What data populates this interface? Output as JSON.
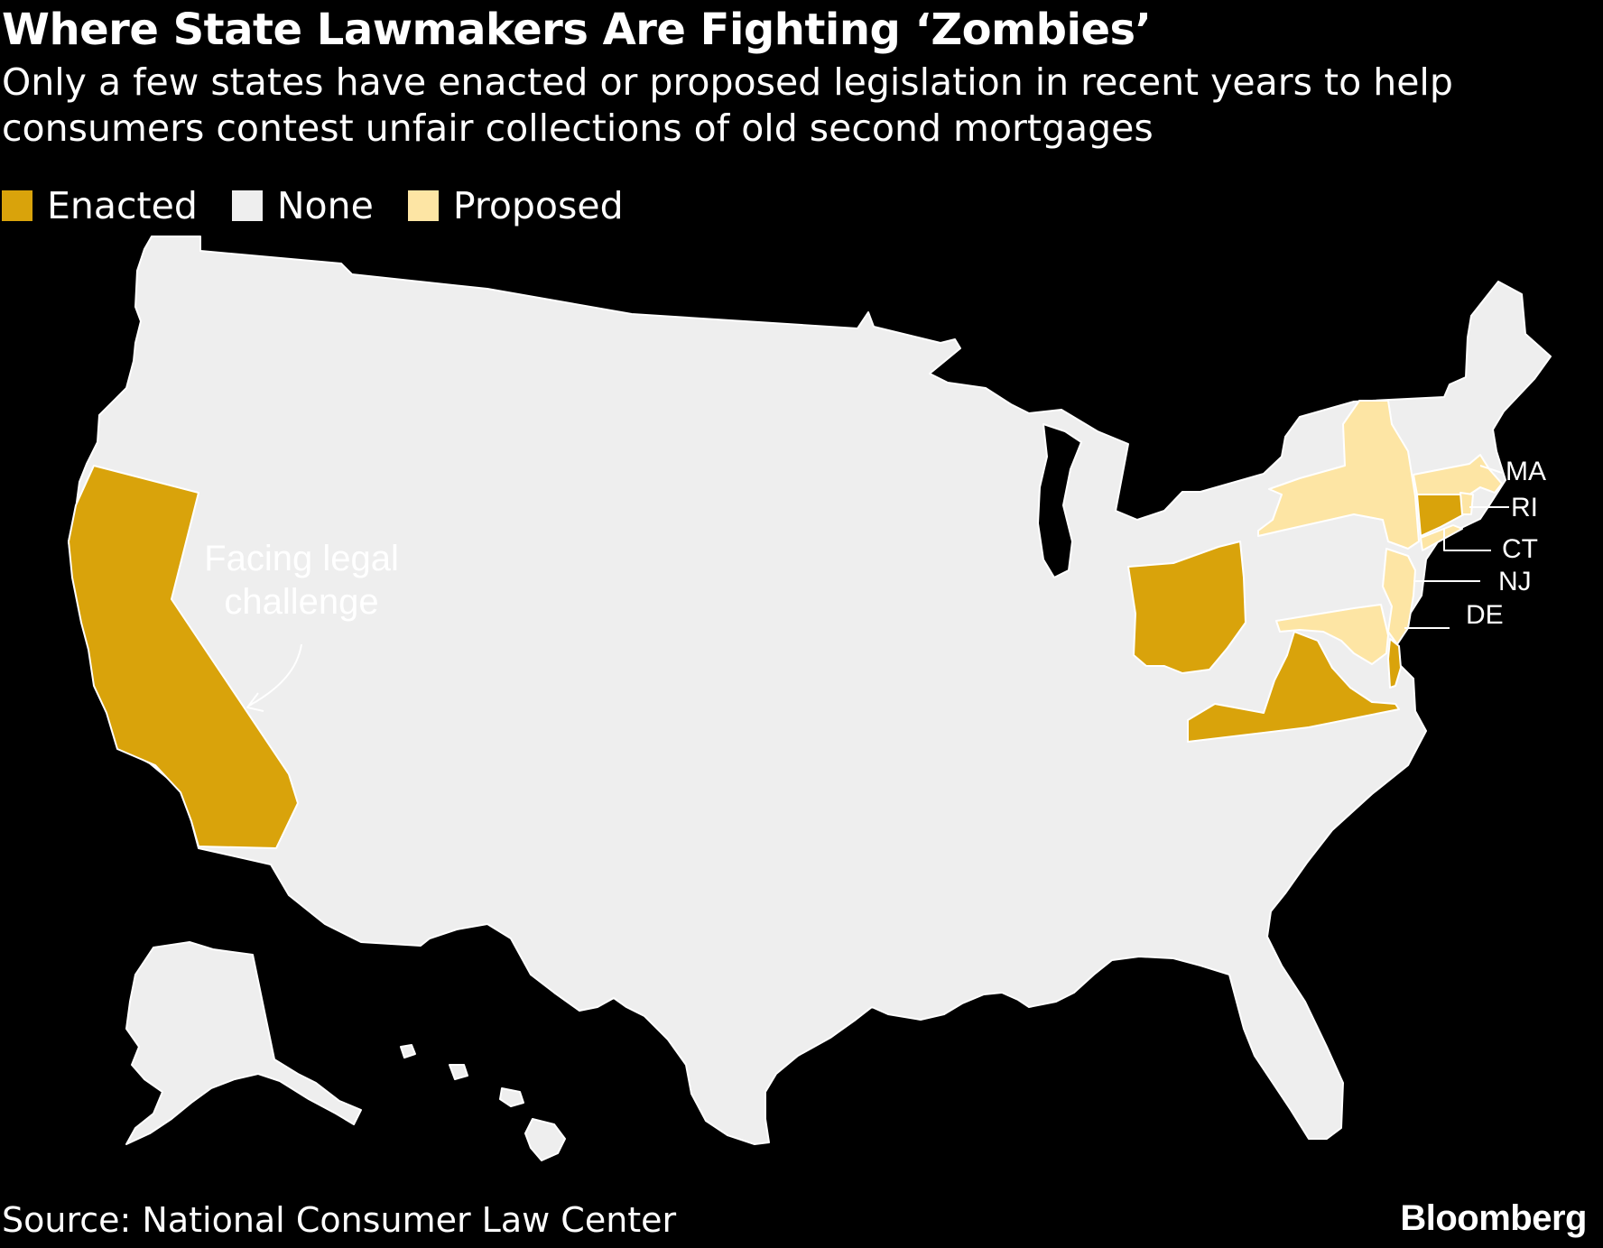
{
  "title": "Where State Lawmakers Are Fighting ‘Zombies’",
  "subtitle": "Only a few states have enacted or proposed legislation in recent years to help consumers contest unfair collections of old second mortgages",
  "legend": [
    {
      "label": "Enacted",
      "color": "#d9a30b"
    },
    {
      "label": "None",
      "color": "#eeeeee"
    },
    {
      "label": "Proposed",
      "color": "#fde5a4"
    }
  ],
  "map": {
    "states": [
      {
        "state": "California",
        "status": "Enacted"
      },
      {
        "state": "Ohio",
        "status": "Enacted"
      },
      {
        "state": "Virginia",
        "status": "Enacted"
      },
      {
        "state": "Connecticut",
        "status": "Enacted"
      },
      {
        "state": "Delaware",
        "status": "Enacted"
      },
      {
        "state": "New York",
        "status": "Proposed"
      },
      {
        "state": "Massachusetts",
        "status": "Proposed"
      },
      {
        "state": "Rhode Island",
        "status": "Proposed"
      },
      {
        "state": "New Jersey",
        "status": "Proposed"
      },
      {
        "state": "Maryland",
        "status": "Proposed"
      }
    ],
    "default_status": "None",
    "annotation": {
      "line1": "Facing legal",
      "line2": "challenge",
      "target_state": "California"
    },
    "callouts": {
      "ma": "MA",
      "ri": "RI",
      "ct": "CT",
      "nj": "NJ",
      "de": "DE"
    }
  },
  "source": "Source: National Consumer Law Center",
  "brand": "Bloomberg"
}
